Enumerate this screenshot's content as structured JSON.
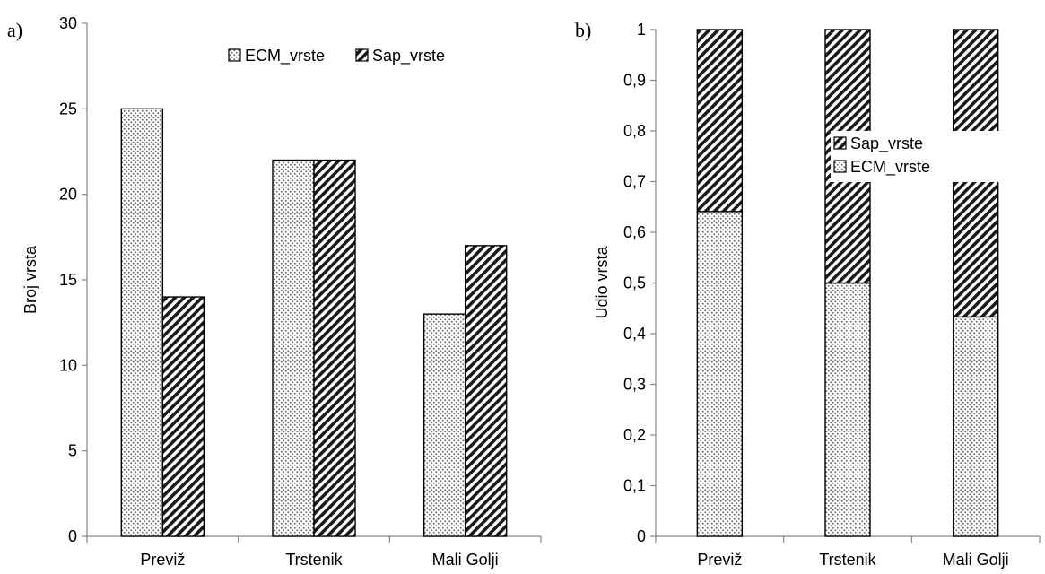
{
  "chart_data": [
    {
      "type": "bar",
      "panel_label": "a)",
      "categories": [
        "Previž",
        "Trstenik",
        "Mali Golji"
      ],
      "series": [
        {
          "name": "ECM_vrste",
          "values": [
            25,
            22,
            13
          ],
          "pattern": "dots"
        },
        {
          "name": "Sap_vrste",
          "values": [
            14,
            22,
            17
          ],
          "pattern": "diagonal-stripes"
        }
      ],
      "ylabel": "Broj vrsta",
      "ylim": [
        0,
        30
      ],
      "yticks": [
        "0",
        "5",
        "10",
        "15",
        "20",
        "25",
        "30"
      ],
      "legend_position": "top-right",
      "legend_order": [
        "ECM_vrste",
        "Sap_vrste"
      ],
      "grid": false
    },
    {
      "type": "bar",
      "stacked": true,
      "panel_label": "b)",
      "categories": [
        "Previž",
        "Trstenik",
        "Mali Golji"
      ],
      "series": [
        {
          "name": "ECM_vrste",
          "values": [
            0.641,
            0.5,
            0.433
          ],
          "pattern": "dots"
        },
        {
          "name": "Sap_vrste",
          "values": [
            0.359,
            0.5,
            0.567
          ],
          "pattern": "diagonal-stripes"
        }
      ],
      "ylabel": "Udio vrsta",
      "ylim": [
        0,
        1
      ],
      "yticks": [
        "0",
        "0,1",
        "0,2",
        "0,3",
        "0,4",
        "0,5",
        "0,6",
        "0,7",
        "0,8",
        "0,9",
        "1"
      ],
      "legend_position": "center-right",
      "legend_order": [
        "Sap_vrste",
        "ECM_vrste"
      ],
      "grid": false
    }
  ],
  "colors": {
    "bar_stroke": "#000000",
    "axis": "#868686",
    "dots": "#6e6e6e",
    "stripes": "#1a1a1a"
  }
}
